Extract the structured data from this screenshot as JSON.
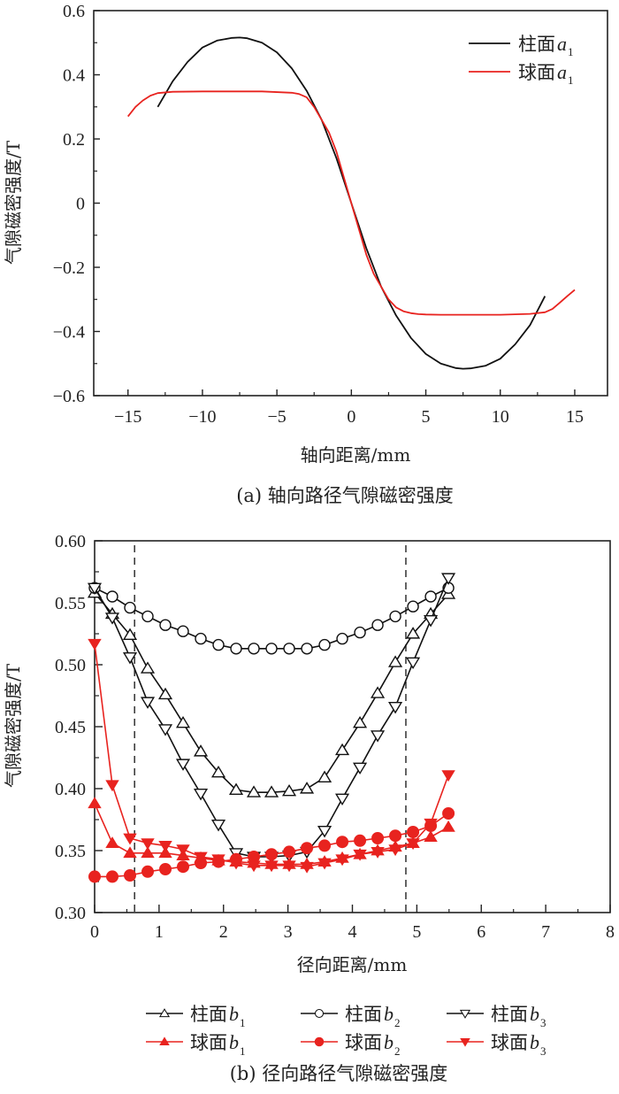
{
  "chart_data": [
    {
      "id": "a",
      "type": "line",
      "title": "",
      "caption": "(a) 轴向路径气隙磁密强度",
      "xlabel": "轴向距离/mm",
      "ylabel": "气隙磁密强度/T",
      "xlim": [
        -17.3,
        17.2
      ],
      "ylim": [
        -0.6,
        0.6
      ],
      "xticks": [
        -15,
        -10,
        -5,
        0,
        5,
        10,
        15
      ],
      "xtick_labels": [
        "−15",
        "−10",
        "−5",
        "0",
        "5",
        "10",
        "15"
      ],
      "yticks": [
        -0.6,
        -0.4,
        -0.2,
        0,
        0.2,
        0.4,
        0.6
      ],
      "ytick_labels": [
        "−0.6",
        "−0.4",
        "−0.2",
        "0",
        "0.2",
        "0.4",
        "0.6"
      ],
      "grid": false,
      "legend_position": "top-right",
      "series": [
        {
          "name": "柱面",
          "sub": "1",
          "var": "a",
          "color": "#111111",
          "x": [
            -13,
            -12,
            -11,
            -10,
            -9,
            -8,
            -7.5,
            -7,
            -6,
            -5,
            -4,
            -3,
            -2,
            -1,
            0,
            1,
            2,
            3,
            4,
            5,
            6,
            7,
            7.5,
            8,
            9,
            10,
            11,
            12,
            13
          ],
          "y": [
            0.3,
            0.38,
            0.44,
            0.485,
            0.507,
            0.515,
            0.516,
            0.514,
            0.5,
            0.47,
            0.42,
            0.35,
            0.26,
            0.14,
            0.0,
            -0.14,
            -0.26,
            -0.35,
            -0.42,
            -0.47,
            -0.5,
            -0.514,
            -0.516,
            -0.515,
            -0.507,
            -0.485,
            -0.44,
            -0.38,
            -0.29
          ]
        },
        {
          "name": "球面",
          "sub": "1",
          "var": "a",
          "color": "#e8231f",
          "x": [
            -15,
            -14.5,
            -14,
            -13.5,
            -13,
            -12,
            -10,
            -8,
            -6,
            -4,
            -3.5,
            -3,
            -2.5,
            -2,
            -1.5,
            -1,
            0,
            1,
            1.5,
            2,
            2.5,
            3,
            3.5,
            4,
            4.5,
            5,
            6,
            8,
            10,
            12,
            13,
            13.5,
            14,
            14.5,
            15
          ],
          "y": [
            0.27,
            0.3,
            0.32,
            0.335,
            0.343,
            0.347,
            0.348,
            0.348,
            0.348,
            0.344,
            0.34,
            0.33,
            0.3,
            0.26,
            0.22,
            0.16,
            0.0,
            -0.16,
            -0.22,
            -0.26,
            -0.3,
            -0.325,
            -0.337,
            -0.343,
            -0.346,
            -0.347,
            -0.348,
            -0.348,
            -0.348,
            -0.345,
            -0.34,
            -0.33,
            -0.31,
            -0.29,
            -0.27
          ]
        }
      ]
    },
    {
      "id": "b",
      "type": "line",
      "title": "",
      "caption": "(b) 径向路径气隙磁密强度",
      "xlabel": "径向距离/mm",
      "ylabel": "气隙磁密强度/T",
      "xlim": [
        0,
        8
      ],
      "ylim": [
        0.3,
        0.6
      ],
      "xticks": [
        0,
        1,
        2,
        3,
        4,
        5,
        6,
        7,
        8
      ],
      "xtick_labels": [
        "0",
        "1",
        "2",
        "3",
        "4",
        "5",
        "6",
        "7",
        "8"
      ],
      "yticks": [
        0.3,
        0.35,
        0.4,
        0.45,
        0.5,
        0.55,
        0.6
      ],
      "ytick_labels": [
        "0.30",
        "0.35",
        "0.40",
        "0.45",
        "0.50",
        "0.55",
        "0.60"
      ],
      "grid": false,
      "vlines": [
        0.62,
        4.83
      ],
      "legend_position": "bottom-outside",
      "x": [
        0,
        0.2745,
        0.549,
        0.8235,
        1.098,
        1.3725,
        1.647,
        1.9215,
        2.196,
        2.4705,
        2.745,
        3.0195,
        3.294,
        3.5685,
        3.843,
        4.1175,
        4.392,
        4.6665,
        4.941,
        5.2155,
        5.49
      ],
      "series": [
        {
          "name": "柱面",
          "var": "b",
          "sub": "1",
          "color": "#111111",
          "marker": "triangle-up-open",
          "values": [
            0.558,
            0.541,
            0.524,
            0.497,
            0.476,
            0.453,
            0.43,
            0.413,
            0.399,
            0.397,
            0.397,
            0.398,
            0.4,
            0.409,
            0.431,
            0.453,
            0.477,
            0.502,
            0.525,
            0.541,
            0.557
          ]
        },
        {
          "name": "柱面",
          "var": "b",
          "sub": "2",
          "color": "#111111",
          "marker": "circle-open",
          "values": [
            0.562,
            0.555,
            0.546,
            0.539,
            0.532,
            0.527,
            0.521,
            0.516,
            0.513,
            0.513,
            0.513,
            0.513,
            0.513,
            0.516,
            0.521,
            0.526,
            0.532,
            0.539,
            0.547,
            0.555,
            0.562
          ]
        },
        {
          "name": "柱面",
          "var": "b",
          "sub": "3",
          "color": "#111111",
          "marker": "triangle-down-open",
          "values": [
            0.562,
            0.538,
            0.506,
            0.47,
            0.448,
            0.42,
            0.396,
            0.371,
            0.348,
            0.345,
            0.345,
            0.346,
            0.349,
            0.366,
            0.392,
            0.417,
            0.443,
            0.466,
            0.502,
            0.536,
            0.57
          ]
        },
        {
          "name": "球面",
          "var": "b",
          "sub": "1",
          "color": "#e8231f",
          "marker": "triangle-up-filled",
          "values": [
            0.388,
            0.356,
            0.348,
            0.348,
            0.348,
            0.346,
            0.344,
            0.342,
            0.341,
            0.34,
            0.339,
            0.339,
            0.339,
            0.341,
            0.344,
            0.347,
            0.35,
            0.353,
            0.356,
            0.361,
            0.369
          ]
        },
        {
          "name": "球面",
          "var": "b",
          "sub": "2",
          "color": "#e8231f",
          "marker": "circle-filled",
          "values": [
            0.329,
            0.329,
            0.33,
            0.333,
            0.335,
            0.337,
            0.34,
            0.341,
            0.343,
            0.345,
            0.347,
            0.349,
            0.352,
            0.354,
            0.357,
            0.358,
            0.36,
            0.362,
            0.365,
            0.37,
            0.38
          ]
        },
        {
          "name": "球面",
          "var": "b",
          "sub": "3",
          "color": "#e8231f",
          "marker": "triangle-down-filled",
          "values": [
            0.517,
            0.403,
            0.36,
            0.356,
            0.354,
            0.351,
            0.345,
            0.343,
            0.34,
            0.338,
            0.338,
            0.338,
            0.337,
            0.34,
            0.343,
            0.347,
            0.349,
            0.351,
            0.356,
            0.372,
            0.411
          ]
        }
      ]
    }
  ]
}
